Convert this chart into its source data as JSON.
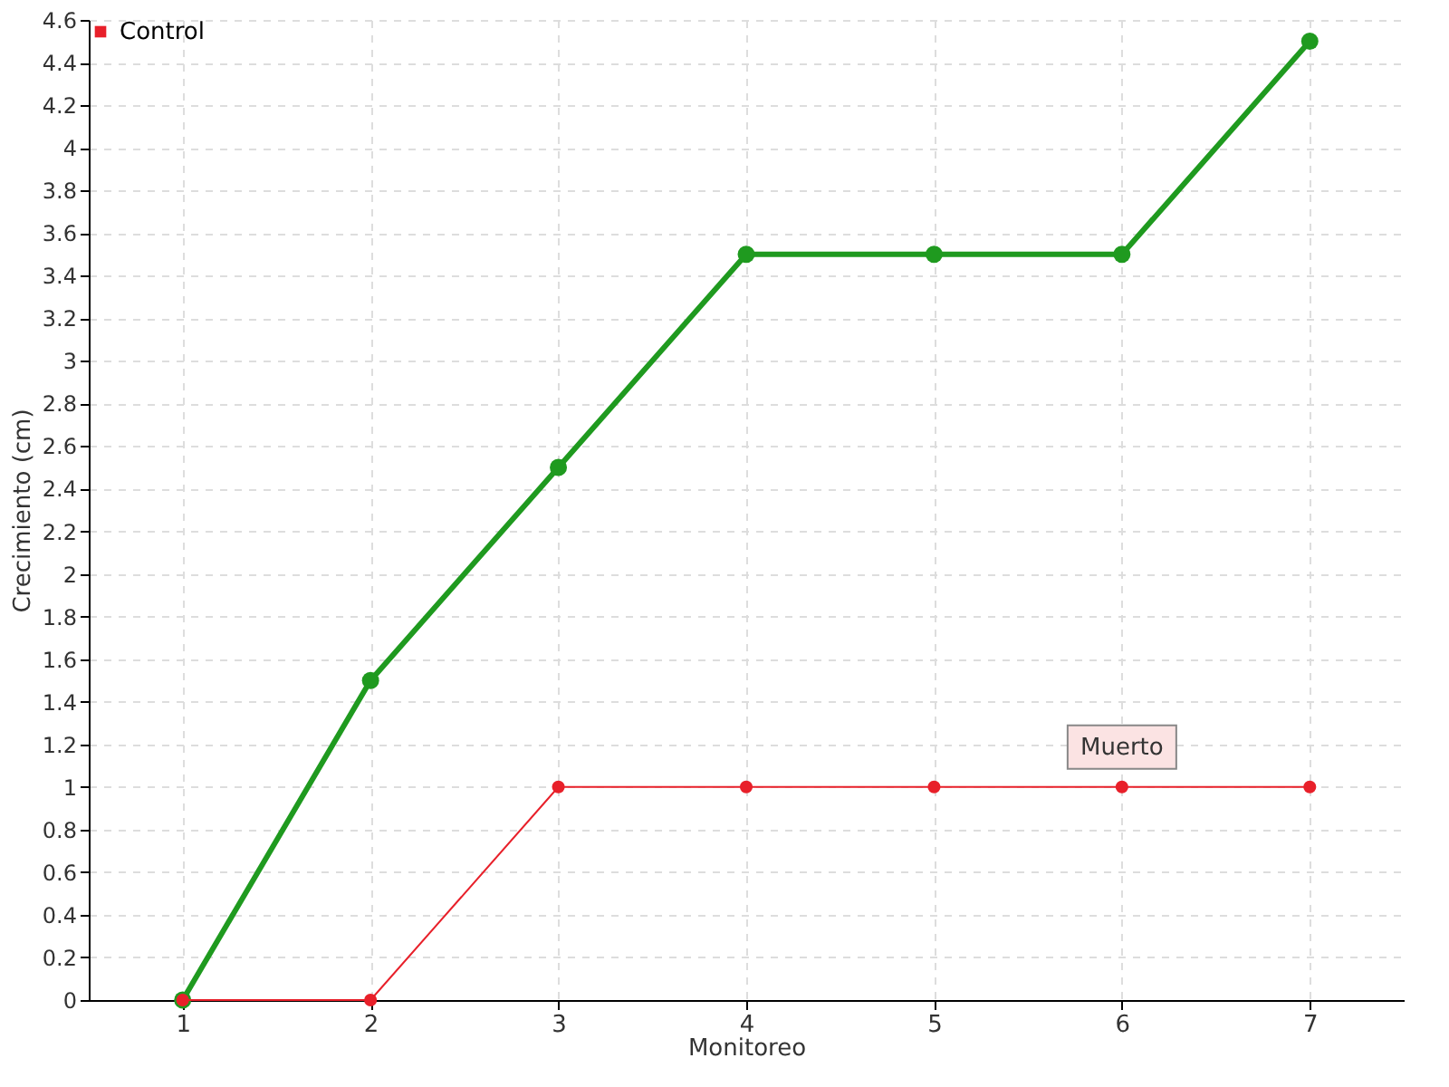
{
  "chart_data": {
    "type": "line",
    "xlabel": "Monitoreo",
    "ylabel": "Crecimiento (cm)",
    "x": [
      1,
      2,
      3,
      4,
      5,
      6,
      7
    ],
    "series": [
      {
        "color": "#1f9a1f",
        "values": [
          0,
          1.5,
          2.5,
          3.5,
          3.5,
          3.5,
          4.5
        ]
      },
      {
        "name": "Control",
        "color": "#e8202a",
        "values": [
          0,
          0,
          1,
          1,
          1,
          1,
          1
        ]
      }
    ],
    "xlim": [
      0.5,
      7.5
    ],
    "xticks": [
      1,
      2,
      3,
      4,
      5,
      6,
      7
    ],
    "ylim": [
      0,
      4.6
    ],
    "yticks": [
      0,
      0.2,
      0.4,
      0.6,
      0.8,
      1,
      1.2,
      1.4,
      1.6,
      1.8,
      2,
      2.2,
      2.4,
      2.6,
      2.8,
      3,
      3.2,
      3.4,
      3.6,
      3.8,
      4,
      4.2,
      4.4,
      4.6
    ],
    "grid": true,
    "legend": "top left",
    "marker": "circle",
    "line_style": "solid",
    "annotations": [
      {
        "text": "Muerto",
        "x": 6,
        "y": 1
      }
    ]
  }
}
